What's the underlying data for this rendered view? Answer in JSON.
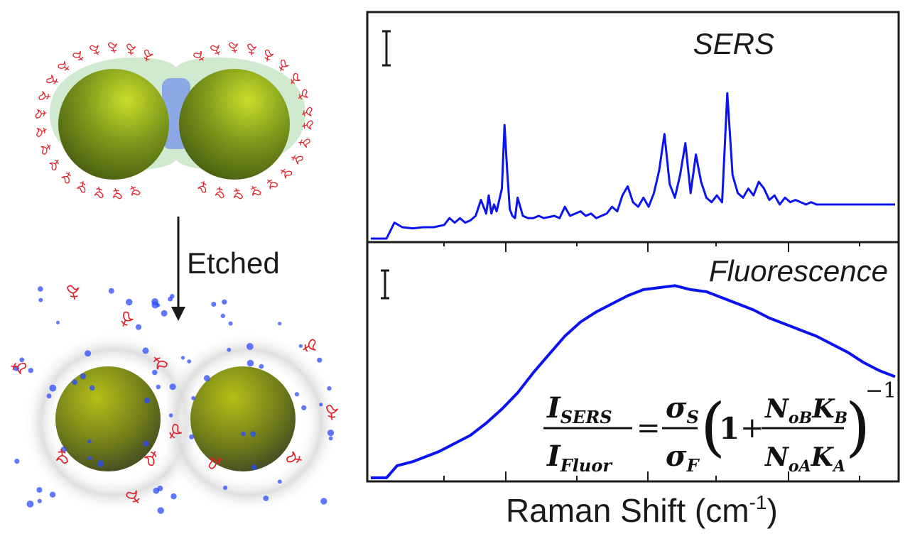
{
  "illustration": {
    "arrow_label": "Etched",
    "colors": {
      "particle_core": "#6f8a12",
      "particle_highlight": "#c9de2a",
      "ligand": "#e0222a",
      "shell": "#9fcf9a",
      "dye": "#2a4bff"
    }
  },
  "chart_data": [
    {
      "type": "line",
      "title": "SERS",
      "color": "#0a14f0",
      "x": [
        0.0,
        0.03,
        0.045,
        0.06,
        0.08,
        0.1,
        0.12,
        0.14,
        0.15,
        0.16,
        0.17,
        0.18,
        0.19,
        0.2,
        0.21,
        0.22,
        0.225,
        0.23,
        0.235,
        0.24,
        0.25,
        0.255,
        0.26,
        0.265,
        0.27,
        0.275,
        0.28,
        0.29,
        0.3,
        0.31,
        0.32,
        0.33,
        0.35,
        0.36,
        0.37,
        0.38,
        0.4,
        0.41,
        0.42,
        0.43,
        0.44,
        0.45,
        0.46,
        0.47,
        0.48,
        0.49,
        0.5,
        0.51,
        0.52,
        0.53,
        0.54,
        0.55,
        0.56,
        0.57,
        0.58,
        0.59,
        0.6,
        0.61,
        0.62,
        0.63,
        0.64,
        0.65,
        0.66,
        0.67,
        0.68,
        0.69,
        0.7,
        0.71,
        0.72,
        0.73,
        0.74,
        0.75,
        0.76,
        0.77,
        0.78,
        0.79,
        0.8,
        0.81,
        0.82,
        0.83,
        0.84,
        0.85,
        0.86,
        0.87,
        0.88,
        0.89,
        0.9,
        0.92,
        0.94,
        0.96,
        0.98,
        1.0
      ],
      "y": [
        0.0,
        0.0,
        0.07,
        0.05,
        0.045,
        0.05,
        0.05,
        0.06,
        0.09,
        0.07,
        0.09,
        0.07,
        0.08,
        0.1,
        0.17,
        0.11,
        0.19,
        0.11,
        0.15,
        0.12,
        0.22,
        0.5,
        0.3,
        0.13,
        0.1,
        0.09,
        0.18,
        0.1,
        0.09,
        0.09,
        0.1,
        0.09,
        0.1,
        0.09,
        0.14,
        0.1,
        0.12,
        0.1,
        0.11,
        0.09,
        0.1,
        0.11,
        0.14,
        0.12,
        0.19,
        0.23,
        0.16,
        0.14,
        0.18,
        0.14,
        0.2,
        0.3,
        0.46,
        0.24,
        0.18,
        0.28,
        0.42,
        0.2,
        0.37,
        0.25,
        0.18,
        0.16,
        0.19,
        0.16,
        0.64,
        0.28,
        0.2,
        0.18,
        0.22,
        0.19,
        0.25,
        0.22,
        0.17,
        0.19,
        0.15,
        0.18,
        0.16,
        0.17,
        0.16,
        0.15,
        0.16,
        0.15,
        0.15,
        0.15,
        0.15,
        0.15,
        0.15,
        0.15,
        0.15,
        0.15,
        0.15,
        0.15
      ]
    },
    {
      "type": "line",
      "title": "Fluorescence",
      "color": "#0a14f0",
      "xlabel": "Raman Shift (cm",
      "xlabel_sup": "-1",
      "xlabel_close": ")",
      "x": [
        0.0,
        0.03,
        0.05,
        0.08,
        0.1,
        0.13,
        0.16,
        0.19,
        0.22,
        0.25,
        0.28,
        0.31,
        0.34,
        0.37,
        0.4,
        0.43,
        0.46,
        0.49,
        0.52,
        0.55,
        0.58,
        0.61,
        0.64,
        0.67,
        0.7,
        0.73,
        0.76,
        0.79,
        0.82,
        0.85,
        0.88,
        0.91,
        0.94,
        0.97,
        1.0
      ],
      "y": [
        0.0,
        0.0,
        0.06,
        0.08,
        0.1,
        0.13,
        0.17,
        0.21,
        0.27,
        0.34,
        0.42,
        0.52,
        0.61,
        0.7,
        0.77,
        0.82,
        0.86,
        0.9,
        0.93,
        0.94,
        0.95,
        0.93,
        0.92,
        0.89,
        0.86,
        0.83,
        0.79,
        0.76,
        0.73,
        0.7,
        0.66,
        0.62,
        0.57,
        0.53,
        0.5
      ]
    }
  ],
  "equation": {
    "lhs_num": "I",
    "lhs_num_sub": "SERS",
    "lhs_den": "I",
    "lhs_den_sub": "Fluor",
    "equals": "=",
    "rhs_num": "σ",
    "rhs_num_sub": "S",
    "rhs_den": "σ",
    "rhs_den_sub": "F",
    "one": "1",
    "plus": "+",
    "frac_num_a": "N",
    "frac_num_a_sub": "oB",
    "frac_num_b": "K",
    "frac_num_b_sub": "B",
    "frac_den_a": "N",
    "frac_den_a_sub": "oA",
    "frac_den_b": "K",
    "frac_den_b_sub": "A",
    "exponent": "−1"
  }
}
